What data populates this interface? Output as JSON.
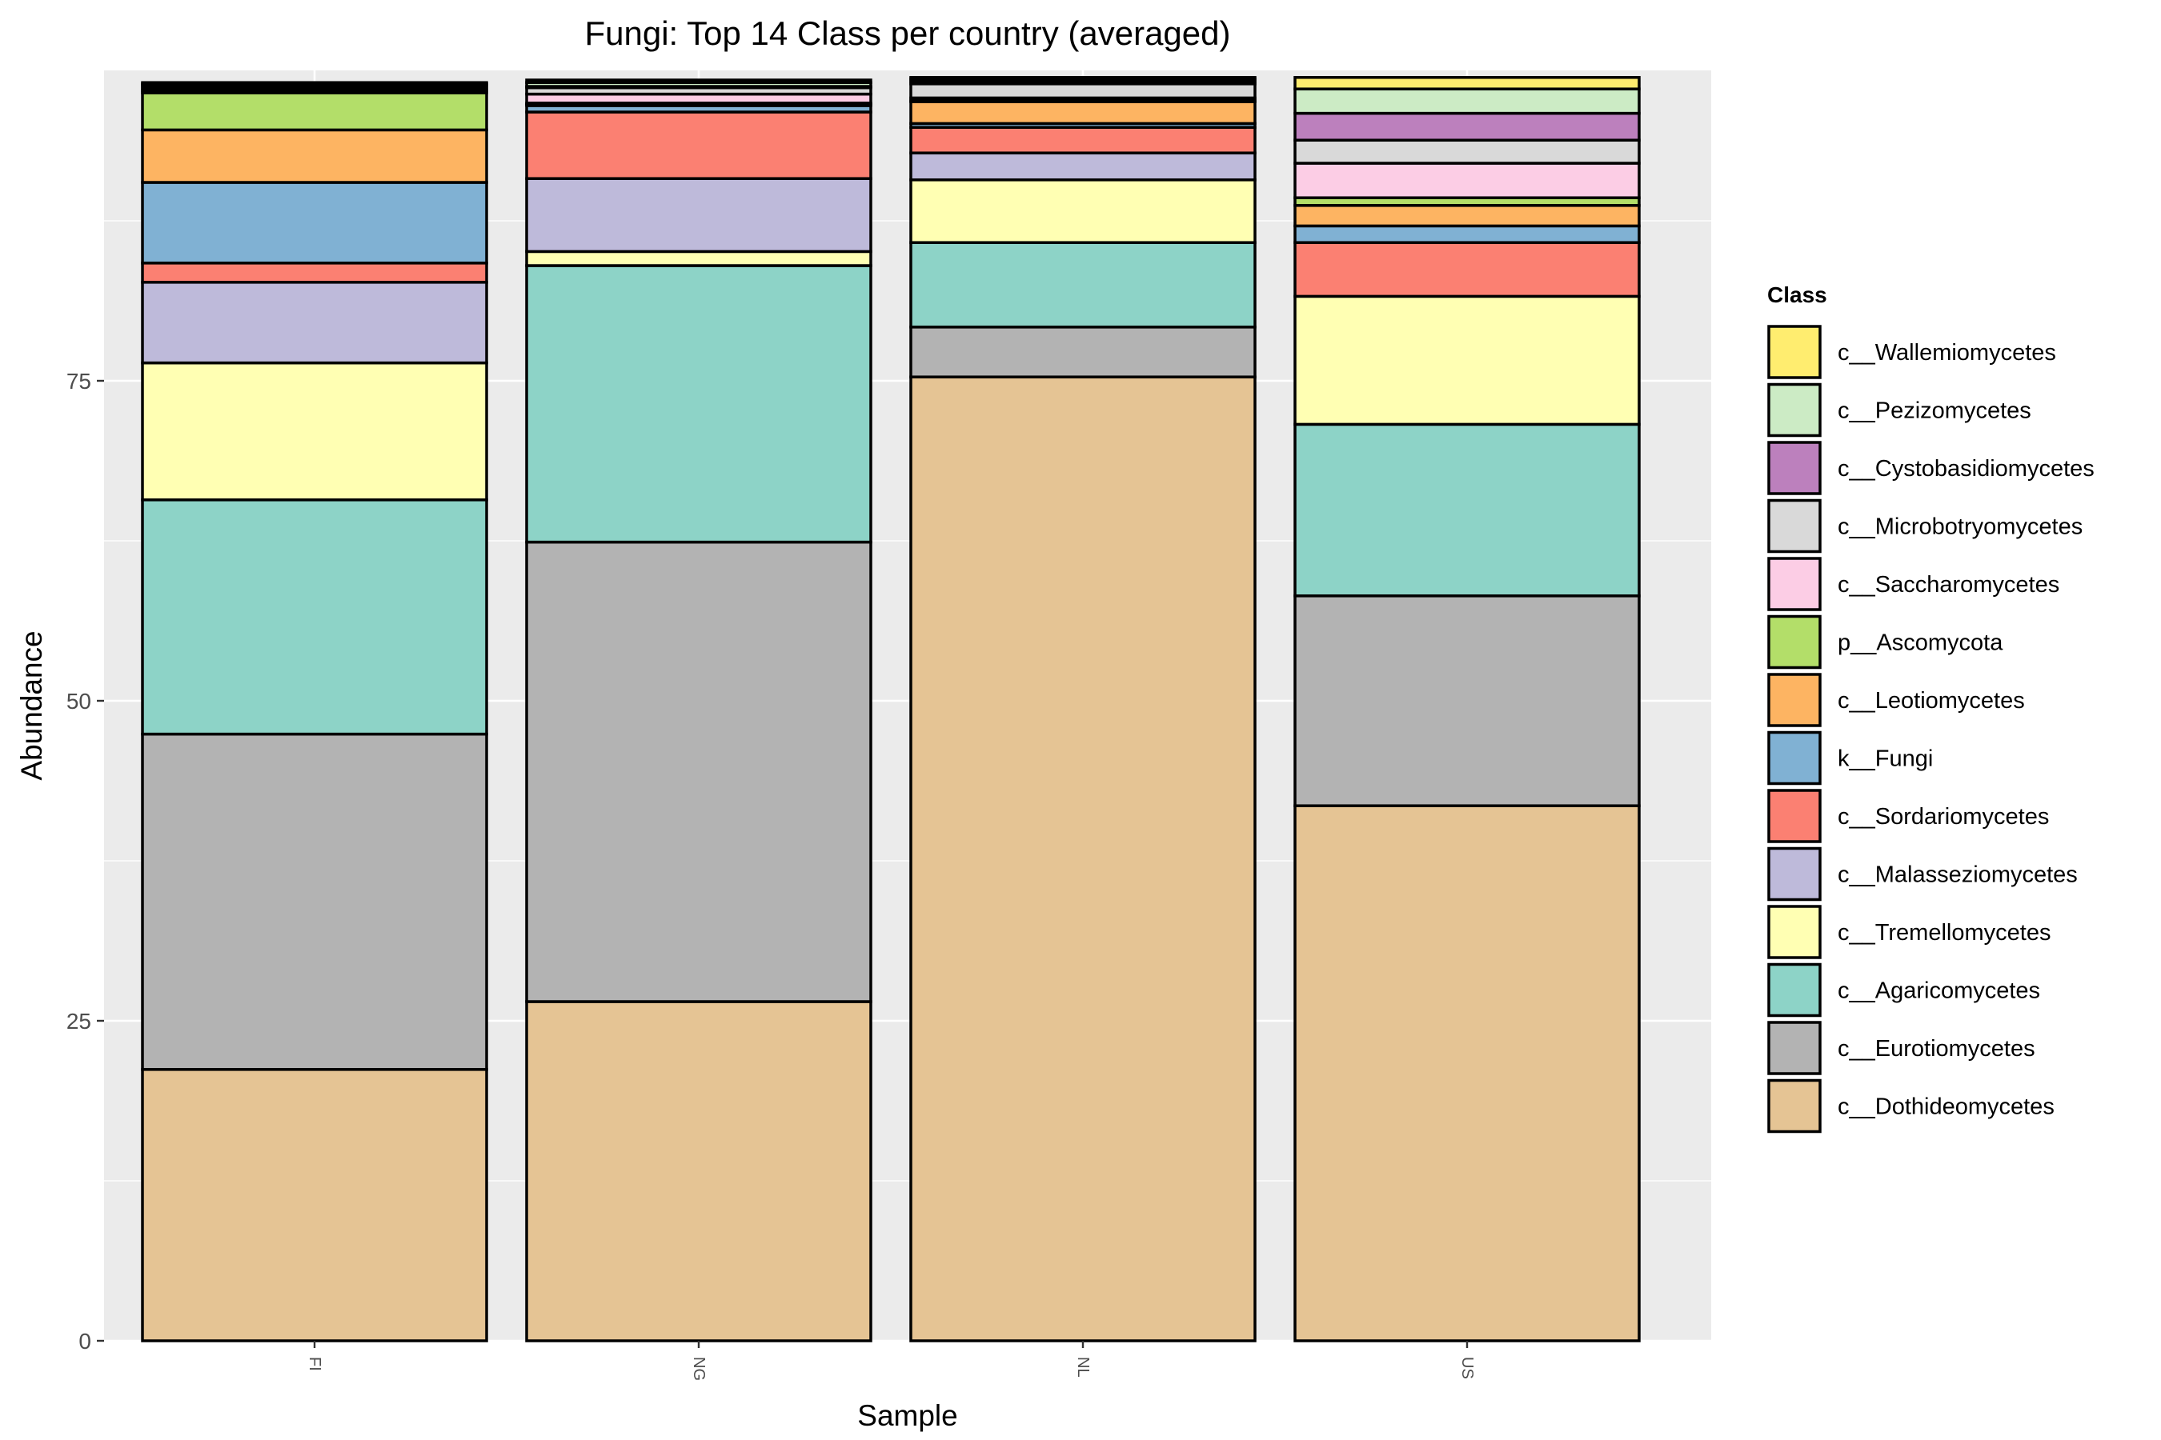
{
  "chart_data": {
    "type": "bar",
    "stacked": true,
    "title": "Fungi: Top 14 Class per country (averaged)",
    "xlabel": "Sample",
    "ylabel": "Abundance",
    "ylim": [
      0,
      100
    ],
    "y_ticks": [
      0,
      25,
      50,
      75
    ],
    "grid": true,
    "legend_position": "right",
    "legend_title": "Class",
    "categories": [
      "FI",
      "NG",
      "NL",
      "US"
    ],
    "series": [
      {
        "name": "c__Dothideomycetes",
        "color": "#E5C494",
        "values": [
          21.2,
          26.5,
          75.3,
          41.8
        ]
      },
      {
        "name": "c__Eurotiomycetes",
        "color": "#B3B3B3",
        "values": [
          26.2,
          35.9,
          3.9,
          16.4
        ]
      },
      {
        "name": "c__Agaricomycetes",
        "color": "#8DD3C7",
        "values": [
          18.3,
          21.6,
          6.6,
          13.4
        ]
      },
      {
        "name": "c__Tremellomycetes",
        "color": "#FFFFB3",
        "values": [
          10.7,
          1.1,
          4.9,
          10.0
        ]
      },
      {
        "name": "c__Malasseziomycetes",
        "color": "#BEBADA",
        "values": [
          6.3,
          5.7,
          2.1,
          0.0
        ]
      },
      {
        "name": "c__Sordariomycetes",
        "color": "#FB8072",
        "values": [
          1.5,
          5.2,
          2.0,
          4.2
        ]
      },
      {
        "name": "k__Fungi",
        "color": "#80B1D3",
        "values": [
          6.3,
          0.5,
          0.3,
          1.3
        ]
      },
      {
        "name": "c__Leotiomycetes",
        "color": "#FDB462",
        "values": [
          4.1,
          0.1,
          1.7,
          1.6
        ]
      },
      {
        "name": "p__Ascomycota",
        "color": "#B3DE69",
        "values": [
          2.9,
          0.1,
          0.1,
          0.6
        ]
      },
      {
        "name": "c__Saccharomycetes",
        "color": "#FCCDE5",
        "values": [
          0.2,
          0.7,
          0.2,
          2.7
        ]
      },
      {
        "name": "c__Microbotryomycetes",
        "color": "#D9D9D9",
        "values": [
          0.2,
          0.5,
          1.1,
          1.8
        ]
      },
      {
        "name": "c__Cystobasidiomycetes",
        "color": "#BC80BD",
        "values": [
          0.2,
          0.1,
          0.2,
          2.1
        ]
      },
      {
        "name": "c__Pezizomycetes",
        "color": "#CCEBC5",
        "values": [
          0.1,
          0.3,
          0.2,
          1.9
        ]
      },
      {
        "name": "c__Wallemiomycetes",
        "color": "#FFED6F",
        "values": [
          0.1,
          0.2,
          0.1,
          0.9
        ]
      }
    ],
    "legend": {
      "labels": [
        "c__Wallemiomycetes",
        "c__Pezizomycetes",
        "c__Cystobasidiomycetes",
        "c__Microbotryomycetes",
        "c__Saccharomycetes",
        "p__Ascomycota",
        "c__Leotiomycetes",
        "k__Fungi",
        "c__Sordariomycetes",
        "c__Malasseziomycetes",
        "c__Tremellomycetes",
        "c__Agaricomycetes",
        "c__Eurotiomycetes",
        "c__Dothideomycetes"
      ]
    },
    "colors": {
      "panel_background": "#EBEBEB",
      "grid_line": "#FFFFFF",
      "bar_outline": "#000000"
    }
  }
}
